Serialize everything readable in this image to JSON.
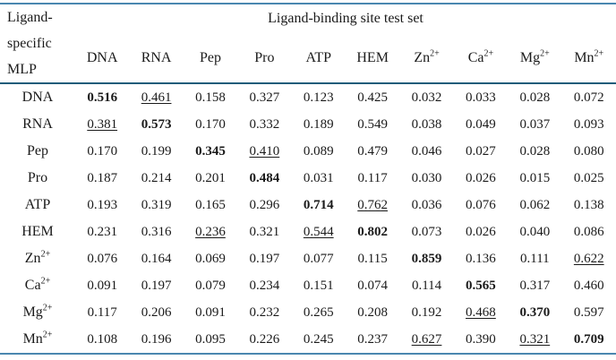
{
  "colors": {
    "rule_outer": "#4a87b0",
    "rule_header": "#1f5c7a",
    "text": "#1a1a1a",
    "background": "#ffffff"
  },
  "table": {
    "corner_lines": [
      "Ligand-",
      "specific",
      "MLP"
    ],
    "group_title": "Ligand-binding site test set",
    "columns": [
      {
        "text": "DNA",
        "sup": ""
      },
      {
        "text": "RNA",
        "sup": ""
      },
      {
        "text": "Pep",
        "sup": ""
      },
      {
        "text": "Pro",
        "sup": ""
      },
      {
        "text": "ATP",
        "sup": ""
      },
      {
        "text": "HEM",
        "sup": ""
      },
      {
        "text": "Zn",
        "sup": "2+"
      },
      {
        "text": "Ca",
        "sup": "2+"
      },
      {
        "text": "Mg",
        "sup": "2+"
      },
      {
        "text": "Mn",
        "sup": "2+"
      }
    ],
    "rows": [
      {
        "label": "DNA",
        "sup": "",
        "values": [
          "0.516",
          "0.461",
          "0.158",
          "0.327",
          "0.123",
          "0.425",
          "0.032",
          "0.033",
          "0.028",
          "0.072"
        ],
        "styles": [
          "bold",
          "underline",
          "",
          "",
          "",
          "",
          "",
          "",
          "",
          ""
        ]
      },
      {
        "label": "RNA",
        "sup": "",
        "values": [
          "0.381",
          "0.573",
          "0.170",
          "0.332",
          "0.189",
          "0.549",
          "0.038",
          "0.049",
          "0.037",
          "0.093"
        ],
        "styles": [
          "underline",
          "bold",
          "",
          "",
          "",
          "",
          "",
          "",
          "",
          ""
        ]
      },
      {
        "label": "Pep",
        "sup": "",
        "values": [
          "0.170",
          "0.199",
          "0.345",
          "0.410",
          "0.089",
          "0.479",
          "0.046",
          "0.027",
          "0.028",
          "0.080"
        ],
        "styles": [
          "",
          "",
          "bold",
          "underline",
          "",
          "",
          "",
          "",
          "",
          ""
        ]
      },
      {
        "label": "Pro",
        "sup": "",
        "values": [
          "0.187",
          "0.214",
          "0.201",
          "0.484",
          "0.031",
          "0.117",
          "0.030",
          "0.026",
          "0.015",
          "0.025"
        ],
        "styles": [
          "",
          "",
          "",
          "bold",
          "",
          "",
          "",
          "",
          "",
          ""
        ]
      },
      {
        "label": "ATP",
        "sup": "",
        "values": [
          "0.193",
          "0.319",
          "0.165",
          "0.296",
          "0.714",
          "0.762",
          "0.036",
          "0.076",
          "0.062",
          "0.138"
        ],
        "styles": [
          "",
          "",
          "",
          "",
          "bold",
          "underline",
          "",
          "",
          "",
          ""
        ]
      },
      {
        "label": "HEM",
        "sup": "",
        "values": [
          "0.231",
          "0.316",
          "0.236",
          "0.321",
          "0.544",
          "0.802",
          "0.073",
          "0.026",
          "0.040",
          "0.086"
        ],
        "styles": [
          "",
          "",
          "underline",
          "",
          "underline",
          "bold",
          "",
          "",
          "",
          ""
        ]
      },
      {
        "label": "Zn",
        "sup": "2+",
        "values": [
          "0.076",
          "0.164",
          "0.069",
          "0.197",
          "0.077",
          "0.115",
          "0.859",
          "0.136",
          "0.111",
          "0.622"
        ],
        "styles": [
          "",
          "",
          "",
          "",
          "",
          "",
          "bold",
          "",
          "",
          "underline"
        ]
      },
      {
        "label": "Ca",
        "sup": "2+",
        "values": [
          "0.091",
          "0.197",
          "0.079",
          "0.234",
          "0.151",
          "0.074",
          "0.114",
          "0.565",
          "0.317",
          "0.460"
        ],
        "styles": [
          "",
          "",
          "",
          "",
          "",
          "",
          "",
          "bold",
          "",
          ""
        ]
      },
      {
        "label": "Mg",
        "sup": "2+",
        "values": [
          "0.117",
          "0.206",
          "0.091",
          "0.232",
          "0.265",
          "0.208",
          "0.192",
          "0.468",
          "0.370",
          "0.597"
        ],
        "styles": [
          "",
          "",
          "",
          "",
          "",
          "",
          "",
          "underline",
          "bold",
          ""
        ]
      },
      {
        "label": "Mn",
        "sup": "2+",
        "values": [
          "0.108",
          "0.196",
          "0.095",
          "0.226",
          "0.245",
          "0.237",
          "0.627",
          "0.390",
          "0.321",
          "0.709"
        ],
        "styles": [
          "",
          "",
          "",
          "",
          "",
          "",
          "underline",
          "",
          "underline",
          "bold"
        ]
      }
    ]
  }
}
